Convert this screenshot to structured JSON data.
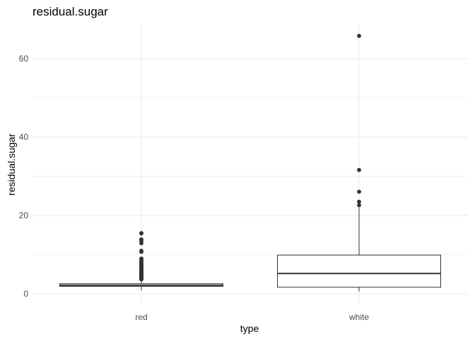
{
  "chart_data": {
    "type": "boxplot",
    "title": "residual.sugar",
    "xlabel": "type",
    "ylabel": "residual.sugar",
    "categories": [
      "red",
      "white"
    ],
    "ylim": [
      -2.5,
      69
    ],
    "yticks": [
      0,
      20,
      40,
      60
    ],
    "ytick_labels": [
      "0",
      "20",
      "40",
      "60"
    ],
    "grid": true,
    "legend": "none",
    "boxes": [
      {
        "name": "red",
        "whisker_low": 0.9,
        "q1": 1.9,
        "median": 2.2,
        "q3": 2.6,
        "whisker_high": 3.6,
        "outliers": [
          3.7,
          3.8,
          3.9,
          4.0,
          4.1,
          4.2,
          4.3,
          4.4,
          4.5,
          4.6,
          4.7,
          4.8,
          4.9,
          5.0,
          5.1,
          5.2,
          5.4,
          5.5,
          5.6,
          5.7,
          5.8,
          5.9,
          6.0,
          6.1,
          6.2,
          6.3,
          6.4,
          6.6,
          6.7,
          6.9,
          7.0,
          7.2,
          7.3,
          7.5,
          7.8,
          7.9,
          8.1,
          8.3,
          8.6,
          8.8,
          8.9,
          9.0,
          10.7,
          11.0,
          12.9,
          13.4,
          13.8,
          13.9,
          15.4,
          15.5
        ]
      },
      {
        "name": "white",
        "whisker_low": 0.6,
        "q1": 1.7,
        "median": 5.2,
        "q3": 9.9,
        "whisker_high": 22.0,
        "outliers": [
          22.6,
          23.5,
          26.05,
          31.6,
          65.8
        ]
      }
    ],
    "colors": {
      "box_stroke": "#333333",
      "box_fill": "#ffffff",
      "point": "#333333",
      "grid": "#ebebeb"
    }
  }
}
